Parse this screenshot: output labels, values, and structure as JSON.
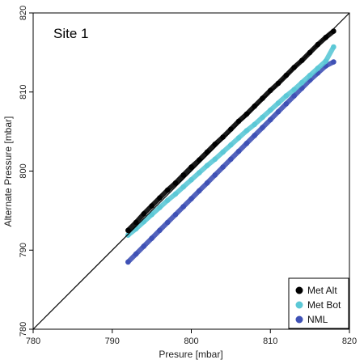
{
  "chart_data": {
    "type": "scatter",
    "title": "",
    "panel_label": "Site 1",
    "xlabel": "Presure [mbar]",
    "ylabel": "Alternate Pressure [mbar]",
    "xlim": [
      780,
      820
    ],
    "ylim": [
      780,
      820
    ],
    "xticks": [
      780,
      790,
      800,
      810,
      820
    ],
    "yticks": [
      780,
      790,
      800,
      810,
      820
    ],
    "xtick_labels": [
      "780",
      "790",
      "800",
      "810",
      "820"
    ],
    "ytick_labels": [
      "780",
      "790",
      "800",
      "810",
      "820"
    ],
    "reference_line": "1:1",
    "grid": false,
    "legend_position": "bottom-right",
    "series": [
      {
        "name": "Met Alt",
        "color": "#000000",
        "x": [
          792,
          793,
          794,
          795,
          796,
          797,
          798,
          799,
          800,
          801,
          802,
          803,
          804,
          805,
          806,
          807,
          808,
          809,
          810,
          811,
          812,
          813,
          814,
          815,
          816,
          817,
          818
        ],
        "y": [
          792.5,
          793.5,
          794.6,
          795.6,
          796.6,
          797.6,
          798.5,
          799.5,
          800.5,
          801.4,
          802.4,
          803.4,
          804.3,
          805.3,
          806.3,
          807.2,
          808.2,
          809.2,
          810.2,
          811.1,
          812.1,
          813.1,
          814.0,
          815.0,
          816.0,
          816.9,
          817.7
        ]
      },
      {
        "name": "Met Bot",
        "color": "#5bc8d6",
        "x": [
          792,
          793,
          794,
          795,
          796,
          797,
          798,
          799,
          800,
          801,
          802,
          803,
          804,
          805,
          806,
          807,
          808,
          809,
          810,
          811,
          812,
          813,
          814,
          815,
          816,
          817,
          818
        ],
        "y": [
          791.9,
          792.7,
          793.6,
          794.5,
          795.4,
          796.3,
          797.1,
          798.0,
          798.9,
          799.8,
          800.7,
          801.5,
          802.4,
          803.3,
          804.2,
          805.1,
          805.9,
          806.8,
          807.7,
          808.6,
          809.5,
          810.3,
          811.2,
          812.1,
          813.0,
          813.9,
          815.7
        ]
      },
      {
        "name": "NML",
        "color": "#3f51b5",
        "x": [
          792,
          793,
          794,
          795,
          796,
          797,
          798,
          799,
          800,
          801,
          802,
          803,
          804,
          805,
          806,
          807,
          808,
          809,
          810,
          811,
          812,
          813,
          814,
          815,
          816,
          817,
          818
        ],
        "y": [
          788.5,
          789.5,
          790.5,
          791.5,
          792.5,
          793.5,
          794.5,
          795.5,
          796.5,
          797.5,
          798.5,
          799.5,
          800.5,
          801.5,
          802.5,
          803.5,
          804.5,
          805.5,
          806.5,
          807.5,
          808.5,
          809.5,
          810.5,
          811.5,
          812.4,
          813.3,
          813.8
        ]
      }
    ]
  }
}
